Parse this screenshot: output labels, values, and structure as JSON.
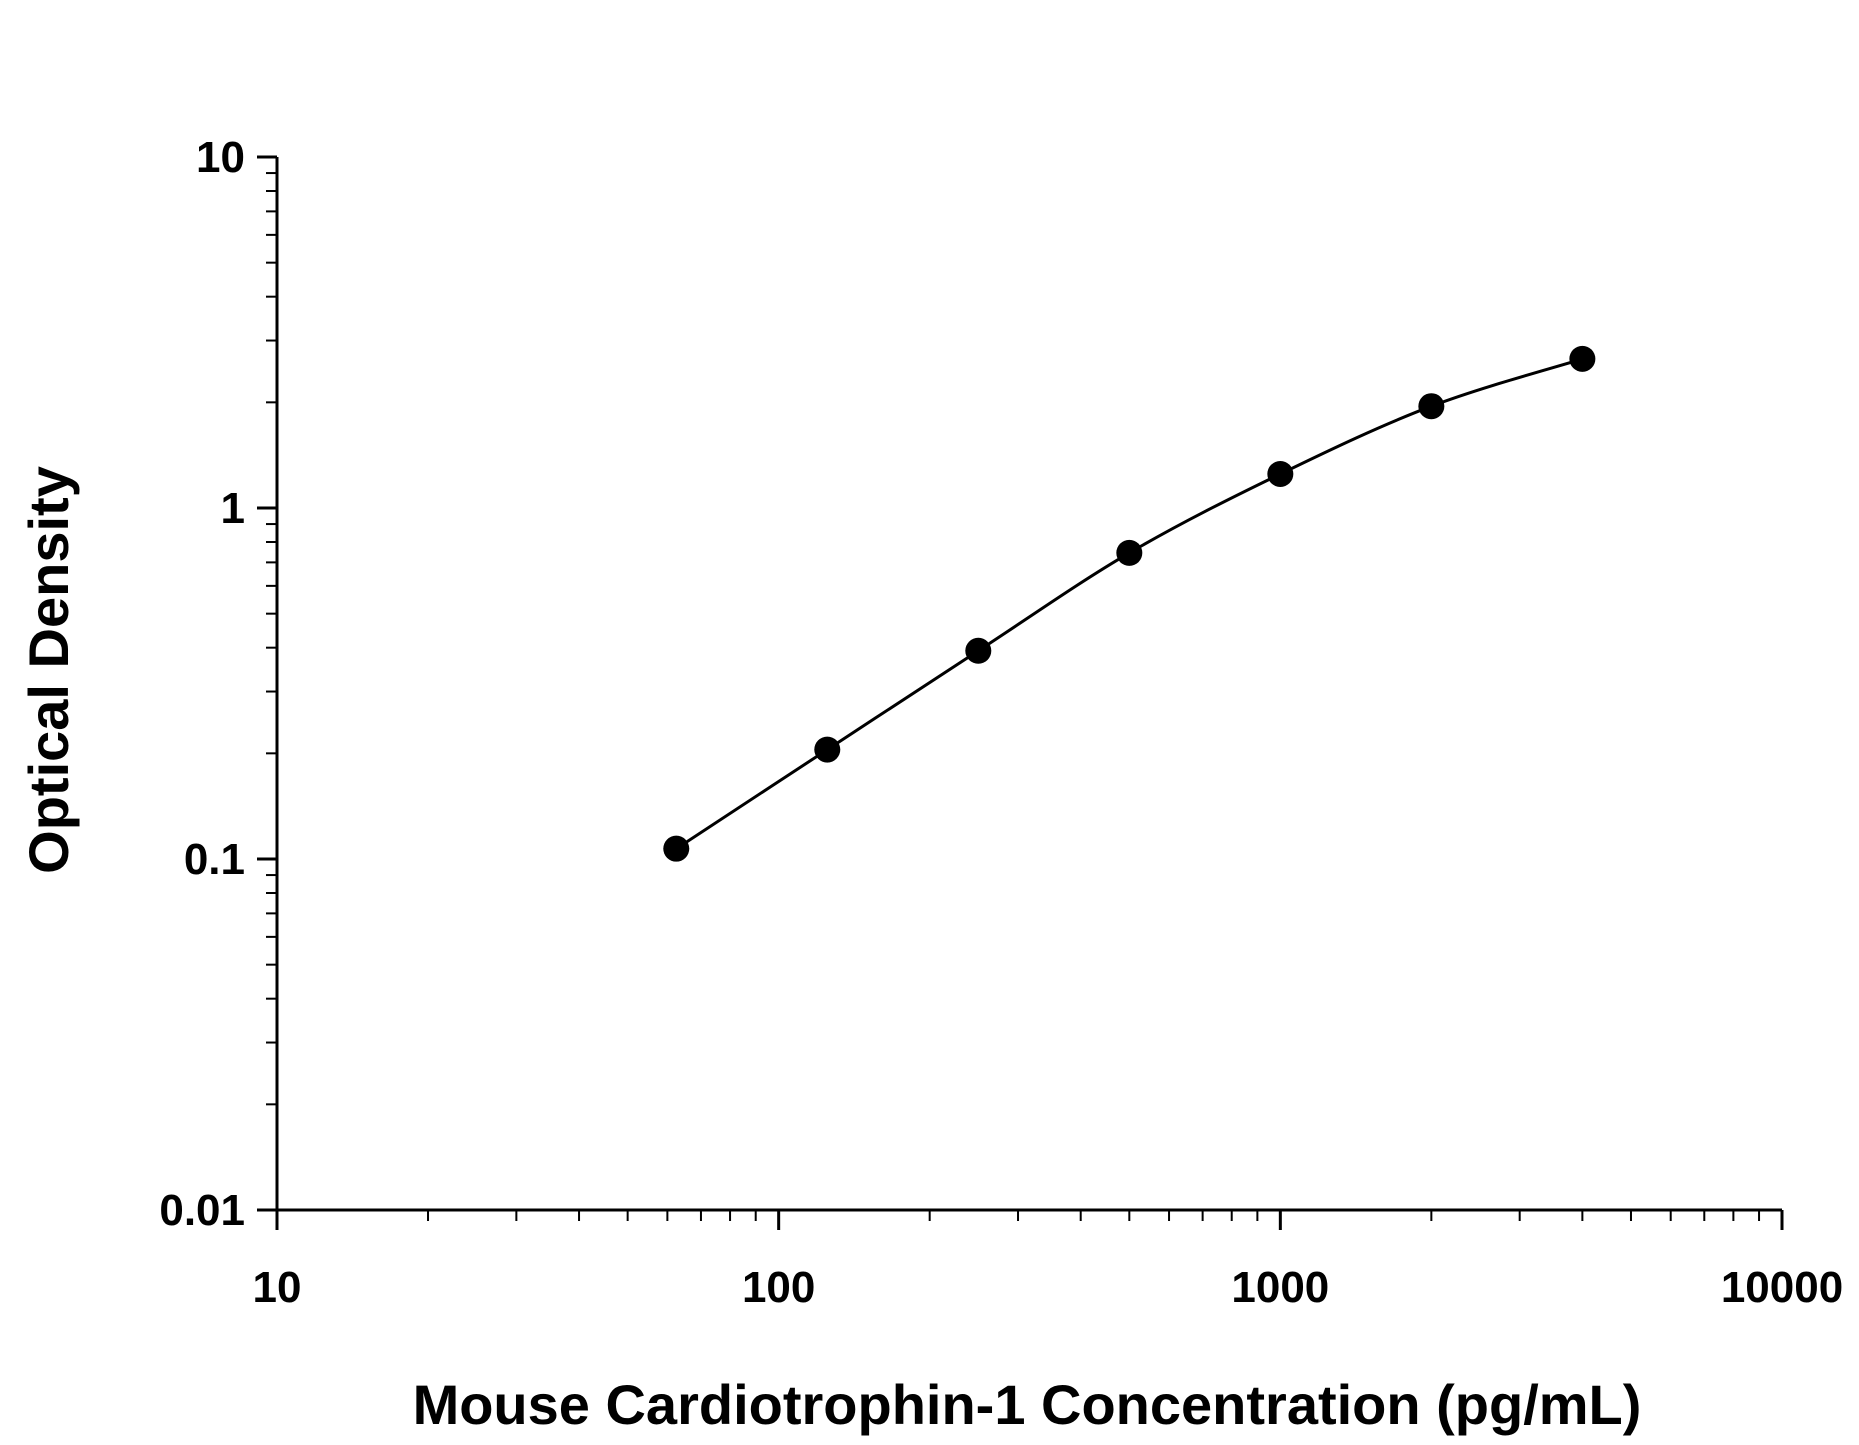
{
  "chart_data": {
    "type": "scatter",
    "title": "",
    "xlabel": "Mouse Cardiotrophin-1 Concentration (pg/mL)",
    "ylabel": "Optical Density",
    "xscale": "log",
    "yscale": "log",
    "xlim": [
      10,
      10000
    ],
    "ylim": [
      0.01,
      10
    ],
    "x_ticks": [
      "10",
      "100",
      "1000",
      "10000"
    ],
    "y_ticks": [
      "0.01",
      "0.1",
      "1",
      "10"
    ],
    "grid": false,
    "legend": "none",
    "series": [
      {
        "x": [
          62.5,
          125,
          250,
          500,
          1000,
          2000,
          4000
        ],
        "y": [
          0.107,
          0.205,
          0.392,
          0.745,
          1.25,
          1.95,
          2.66
        ]
      }
    ],
    "fit_curve": "smooth line through the points",
    "marker_color": "#000000",
    "line_color": "#000000"
  }
}
